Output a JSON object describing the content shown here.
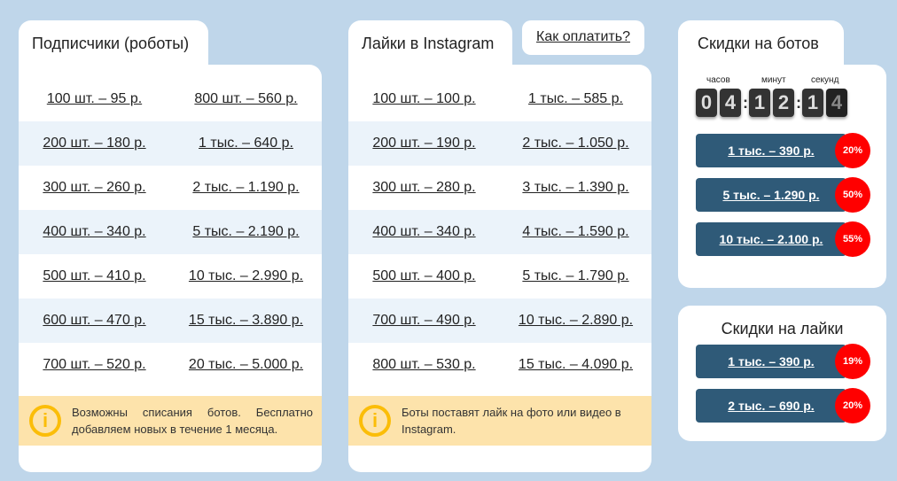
{
  "robots": {
    "title": "Подписчики (роботы)",
    "rows": [
      [
        "100 шт. – 95 р.",
        "800 шт. – 560 р."
      ],
      [
        "200 шт. – 180 р.",
        "1 тыс. – 640 р."
      ],
      [
        "300 шт. – 260 р.",
        "2 тыс. – 1.190 р."
      ],
      [
        "400 шт. – 340 р.",
        "5 тыс. – 2.190 р."
      ],
      [
        "500 шт. – 410 р.",
        "10 тыс. – 2.990 р."
      ],
      [
        "600 шт. – 470 р.",
        "15 тыс. – 3.890 р."
      ],
      [
        "700 шт. – 520 р.",
        "20 тыс. – 5.000 р."
      ]
    ],
    "info": "Возможны списания ботов. Бесплатно добавляем новых в течение 1 месяца."
  },
  "likes": {
    "title": "Лайки в Instagram",
    "rows": [
      [
        "100 шт. – 100 р.",
        "1 тыс. – 585 р."
      ],
      [
        "200 шт. – 190 р.",
        "2 тыс. – 1.050 р."
      ],
      [
        "300 шт. – 280 р.",
        "3 тыс. – 1.390 р."
      ],
      [
        "400 шт. – 340 р.",
        "4 тыс. – 1.590 р."
      ],
      [
        "500 шт. – 400 р.",
        "5 тыс. – 1.790 р."
      ],
      [
        "700 шт. – 490 р.",
        "10 тыс. – 2.890 р."
      ],
      [
        "800 шт. – 530 р.",
        "15 тыс. – 4.090 р."
      ]
    ],
    "info": "Боты поставят лайк на фото или видео в Instagram."
  },
  "pay_link": "Как оплатить?",
  "info_icon": "i",
  "bot_discounts": {
    "title": "Скидки на ботов",
    "timer": {
      "labels": [
        "часов",
        "минут",
        "секунд"
      ],
      "digits": [
        "0",
        "4",
        "1",
        "2",
        "1",
        "4"
      ]
    },
    "items": [
      {
        "label": "1 тыс. – 390 р.",
        "badge": "20%"
      },
      {
        "label": "5 тыс. – 1.290 р.",
        "badge": "50%"
      },
      {
        "label": "10 тыс. – 2.100 р.",
        "badge": "55%"
      }
    ]
  },
  "like_discounts": {
    "title": "Скидки на лайки",
    "items": [
      {
        "label": "1 тыс. – 390 р.",
        "badge": "19%"
      },
      {
        "label": "2 тыс. – 690 р.",
        "badge": "20%"
      }
    ]
  },
  "colors": {
    "background": "#bfd6ea",
    "discount_bar": "#2f5a78",
    "badge": "#ff0000",
    "info_bg": "#fde3ab",
    "info_icon": "#fbbd08"
  }
}
